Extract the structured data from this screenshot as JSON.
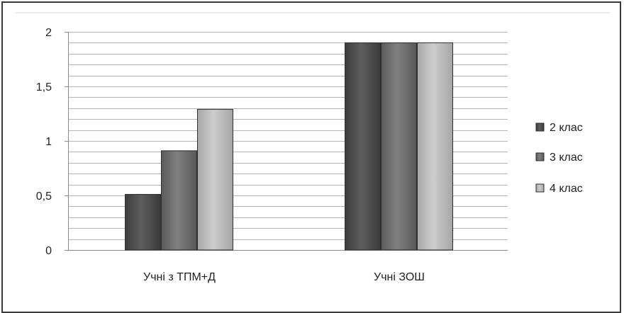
{
  "chart_data": {
    "type": "bar",
    "categories": [
      "Учні з ТПМ+Д",
      "Учні ЗОШ"
    ],
    "series": [
      {
        "name": "2 клас",
        "values": [
          0.51,
          1.9
        ]
      },
      {
        "name": "3 клас",
        "values": [
          0.91,
          1.9
        ]
      },
      {
        "name": "4 клас",
        "values": [
          1.29,
          1.9
        ]
      }
    ],
    "yticks": [
      "0",
      "0,5",
      "1",
      "1,5",
      "2"
    ],
    "ylim": [
      0,
      2
    ],
    "grid": true,
    "legend": "right",
    "colors": [
      "#4a4a4a",
      "#6e6e6e",
      "#b8b8b8"
    ]
  }
}
